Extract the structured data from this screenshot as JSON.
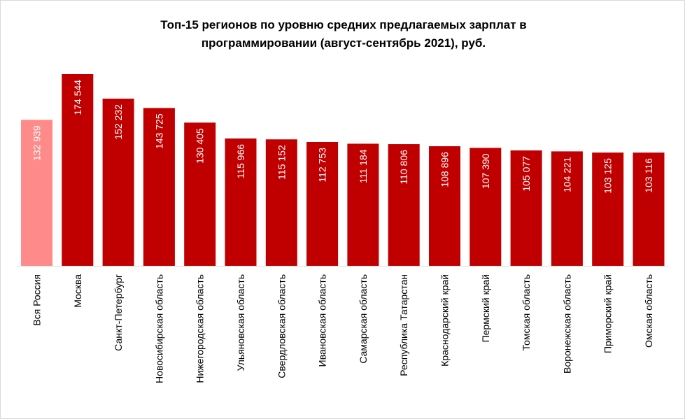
{
  "chart_data": {
    "type": "bar",
    "title_lines": [
      "Топ-15 регионов по уровню средних предлагаемых зарплат в",
      "программировании  (август-сентябрь 2021), руб."
    ],
    "categories": [
      "Вся Россия",
      "Москва",
      "Санкт-Петербург",
      "Новосибирская область",
      "Нижегородская область",
      "Ульяновская область",
      "Свердловская область",
      "Ивановская область",
      "Самарская область",
      "Республика Татарстан",
      "Краснодарский край",
      "Пермский край",
      "Томская область",
      "Воронежская область",
      "Приморский край",
      "Омская область"
    ],
    "values": [
      132939,
      174544,
      152232,
      143725,
      130405,
      115966,
      115152,
      112753,
      111184,
      110806,
      108896,
      107390,
      105077,
      104221,
      103125,
      103116
    ],
    "value_labels": [
      "132 939",
      "174 544",
      "152 232",
      "143 725",
      "130 405",
      "115 966",
      "115 152",
      "112 753",
      "111 184",
      "110 806",
      "108 896",
      "107 390",
      "105 077",
      "104 221",
      "103 125",
      "103 116"
    ],
    "colors": {
      "highlight": "#ff8a8a",
      "bar": "#c00000",
      "value_text": "#ffffff",
      "axis": "#d9d9d9"
    },
    "highlight_index": 0,
    "ylim": [
      0,
      174544
    ],
    "grid": false,
    "legend": "none"
  }
}
